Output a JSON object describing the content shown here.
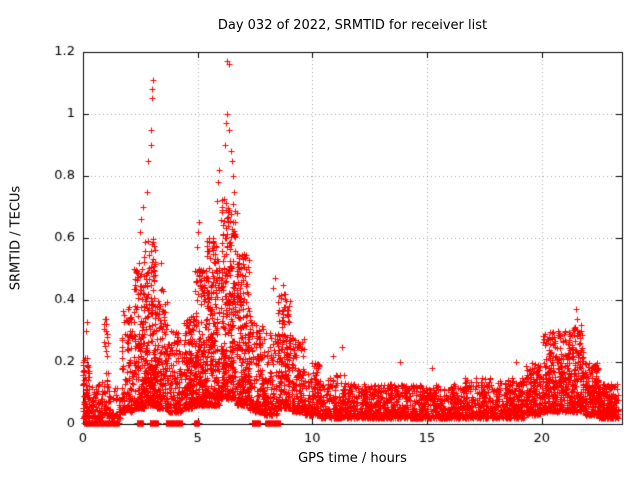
{
  "chart_data": {
    "type": "scatter",
    "title": "Day 032 of 2022, SRMTID for receiver list",
    "xlabel": "GPS time / hours",
    "ylabel": "SRMTID / TECUs",
    "xlim": [
      0,
      23.5
    ],
    "ylim": [
      0,
      1.2
    ],
    "xticks": [
      0,
      5,
      10,
      15,
      20
    ],
    "xtick_labels": [
      "0",
      "5",
      "10",
      "15",
      "20"
    ],
    "yticks": [
      0,
      0.2,
      0.4,
      0.6,
      0.8,
      1,
      1.2
    ],
    "ytick_labels": [
      "0",
      "0.2",
      "0.4",
      "0.6",
      "0.8",
      "1",
      "1.2"
    ],
    "grid": true,
    "grid_style": "dotted",
    "legend": "none",
    "marker": "plus",
    "color": "#ff0000",
    "seed": 1234,
    "column_step_hours": 0.045,
    "clusters": [
      {
        "x0": 0.0,
        "x1": 0.35,
        "n": 90,
        "ymin": 0.02,
        "ymax": 0.22,
        "skew": 1.6
      },
      {
        "x0": 0.35,
        "x1": 0.9,
        "n": 70,
        "ymin": 0.02,
        "ymax": 0.14,
        "skew": 2.0
      },
      {
        "x0": 0.9,
        "x1": 1.15,
        "n": 45,
        "ymin": 0.03,
        "ymax": 0.35,
        "skew": 1.8
      },
      {
        "x0": 1.15,
        "x1": 1.7,
        "n": 60,
        "ymin": 0.02,
        "ymax": 0.12,
        "skew": 2.0
      },
      {
        "x0": 1.7,
        "x1": 2.2,
        "n": 120,
        "ymin": 0.04,
        "ymax": 0.38,
        "skew": 2.0
      },
      {
        "x0": 2.2,
        "x1": 2.7,
        "n": 180,
        "ymin": 0.05,
        "ymax": 0.55,
        "skew": 2.2
      },
      {
        "x0": 2.7,
        "x1": 3.2,
        "n": 220,
        "ymin": 0.06,
        "ymax": 0.6,
        "skew": 2.0
      },
      {
        "x0": 3.2,
        "x1": 3.7,
        "n": 150,
        "ymin": 0.05,
        "ymax": 0.45,
        "skew": 2.2
      },
      {
        "x0": 3.7,
        "x1": 4.4,
        "n": 130,
        "ymin": 0.04,
        "ymax": 0.3,
        "skew": 2.2
      },
      {
        "x0": 4.4,
        "x1": 4.9,
        "n": 160,
        "ymin": 0.05,
        "ymax": 0.35,
        "skew": 2.0
      },
      {
        "x0": 4.9,
        "x1": 5.4,
        "n": 220,
        "ymin": 0.06,
        "ymax": 0.5,
        "skew": 2.0
      },
      {
        "x0": 5.4,
        "x1": 6.0,
        "n": 260,
        "ymin": 0.06,
        "ymax": 0.6,
        "skew": 2.1
      },
      {
        "x0": 6.0,
        "x1": 6.7,
        "n": 280,
        "ymin": 0.08,
        "ymax": 0.75,
        "skew": 1.9
      },
      {
        "x0": 6.7,
        "x1": 7.3,
        "n": 240,
        "ymin": 0.06,
        "ymax": 0.55,
        "skew": 2.1
      },
      {
        "x0": 7.3,
        "x1": 7.9,
        "n": 160,
        "ymin": 0.04,
        "ymax": 0.35,
        "skew": 2.2
      },
      {
        "x0": 7.9,
        "x1": 8.5,
        "n": 140,
        "ymin": 0.03,
        "ymax": 0.3,
        "skew": 2.0
      },
      {
        "x0": 8.5,
        "x1": 9.1,
        "n": 170,
        "ymin": 0.05,
        "ymax": 0.42,
        "skew": 2.0
      },
      {
        "x0": 9.1,
        "x1": 9.7,
        "n": 150,
        "ymin": 0.04,
        "ymax": 0.28,
        "skew": 2.2
      },
      {
        "x0": 9.7,
        "x1": 10.4,
        "n": 160,
        "ymin": 0.03,
        "ymax": 0.2,
        "skew": 2.2
      },
      {
        "x0": 10.4,
        "x1": 11.5,
        "n": 200,
        "ymin": 0.02,
        "ymax": 0.16,
        "skew": 2.0
      },
      {
        "x0": 11.5,
        "x1": 14.0,
        "n": 450,
        "ymin": 0.02,
        "ymax": 0.13,
        "skew": 2.0
      },
      {
        "x0": 14.0,
        "x1": 16.5,
        "n": 450,
        "ymin": 0.02,
        "ymax": 0.13,
        "skew": 2.0
      },
      {
        "x0": 16.5,
        "x1": 19.3,
        "n": 500,
        "ymin": 0.02,
        "ymax": 0.15,
        "skew": 1.9
      },
      {
        "x0": 19.3,
        "x1": 20.0,
        "n": 160,
        "ymin": 0.03,
        "ymax": 0.2,
        "skew": 1.8
      },
      {
        "x0": 20.0,
        "x1": 21.0,
        "n": 260,
        "ymin": 0.04,
        "ymax": 0.3,
        "skew": 1.7
      },
      {
        "x0": 21.0,
        "x1": 21.9,
        "n": 260,
        "ymin": 0.04,
        "ymax": 0.32,
        "skew": 1.7
      },
      {
        "x0": 21.9,
        "x1": 22.5,
        "n": 180,
        "ymin": 0.03,
        "ymax": 0.2,
        "skew": 2.0
      },
      {
        "x0": 22.5,
        "x1": 23.4,
        "n": 220,
        "ymin": 0.02,
        "ymax": 0.13,
        "skew": 2.0
      }
    ],
    "peaks": [
      [
        0.15,
        0.3
      ],
      [
        0.17,
        0.33
      ],
      [
        1.0,
        0.3
      ],
      [
        1.02,
        0.34
      ],
      [
        1.95,
        0.37
      ],
      [
        2.5,
        0.62
      ],
      [
        2.55,
        0.66
      ],
      [
        2.6,
        0.7
      ],
      [
        2.8,
        0.75
      ],
      [
        2.85,
        0.85
      ],
      [
        2.95,
        0.95
      ],
      [
        2.98,
        0.9
      ],
      [
        3.0,
        1.05
      ],
      [
        3.02,
        1.08
      ],
      [
        3.05,
        1.11
      ],
      [
        3.4,
        0.52
      ],
      [
        4.95,
        0.57
      ],
      [
        5.0,
        0.62
      ],
      [
        5.05,
        0.65
      ],
      [
        5.85,
        0.72
      ],
      [
        5.9,
        0.78
      ],
      [
        5.95,
        0.82
      ],
      [
        6.2,
        0.9
      ],
      [
        6.25,
        0.97
      ],
      [
        6.3,
        1.0
      ],
      [
        6.3,
        1.17
      ],
      [
        6.38,
        1.16
      ],
      [
        6.35,
        0.95
      ],
      [
        6.45,
        0.88
      ],
      [
        6.5,
        0.85
      ],
      [
        6.55,
        0.8
      ],
      [
        6.6,
        0.75
      ],
      [
        6.7,
        0.68
      ],
      [
        7.0,
        0.55
      ],
      [
        7.1,
        0.5
      ],
      [
        8.3,
        0.44
      ],
      [
        8.35,
        0.47
      ],
      [
        8.7,
        0.45
      ],
      [
        8.75,
        0.42
      ],
      [
        9.0,
        0.38
      ],
      [
        10.9,
        0.22
      ],
      [
        11.3,
        0.25
      ],
      [
        13.8,
        0.2
      ],
      [
        15.2,
        0.18
      ],
      [
        18.9,
        0.2
      ],
      [
        20.3,
        0.28
      ],
      [
        20.7,
        0.3
      ],
      [
        21.0,
        0.3
      ],
      [
        21.5,
        0.37
      ],
      [
        21.55,
        0.34
      ],
      [
        21.7,
        0.32
      ]
    ],
    "zero_runs": [
      [
        0.05,
        1.55
      ],
      [
        2.35,
        2.6
      ],
      [
        2.9,
        3.25
      ],
      [
        3.6,
        4.3
      ],
      [
        4.85,
        5.05
      ],
      [
        7.35,
        7.7
      ],
      [
        7.95,
        8.6
      ]
    ]
  }
}
